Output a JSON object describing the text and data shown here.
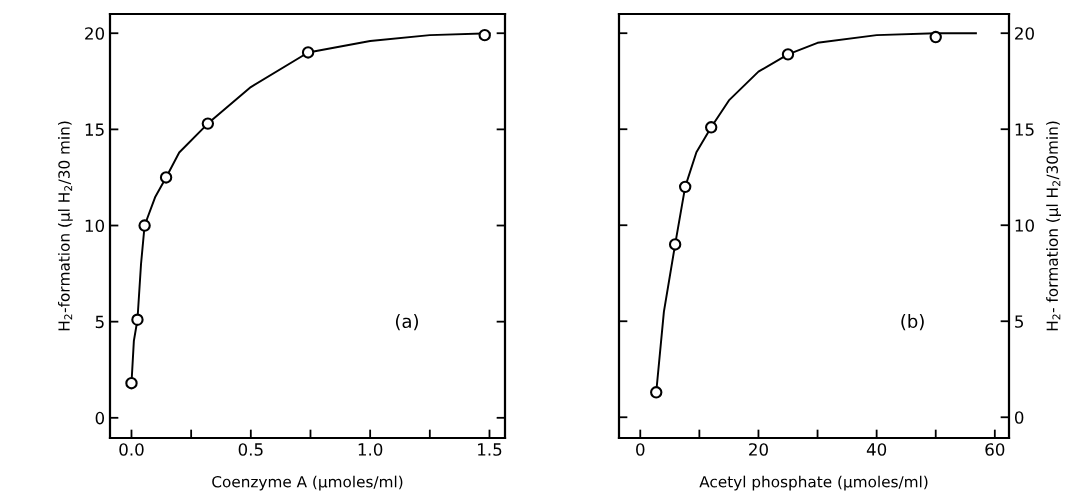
{
  "chart_data": [
    {
      "type": "scatter",
      "xlabel": "Coenzyme A (μmoles/ml)",
      "ylabel": "H$_{2}$-formation (μl H$_{2}$/30 min)",
      "annotations": [
        "(a)"
      ],
      "xlim": [
        -0.09,
        1.565
      ],
      "xticks": [
        {
          "value": 0.0,
          "label": "0.0"
        },
        {
          "value": 0.25,
          "label": null
        },
        {
          "value": 0.5,
          "label": "0.5"
        },
        {
          "value": 0.75,
          "label": null
        },
        {
          "value": 1.0,
          "label": "1.0"
        },
        {
          "value": 1.25,
          "label": null
        },
        {
          "value": 1.5,
          "label": "1.5"
        }
      ],
      "ylim": [
        -1.05,
        21
      ],
      "yticks": [
        0,
        5,
        10,
        15,
        20
      ],
      "grid": false,
      "marker": "circle",
      "series": [
        {
          "type": "line",
          "color": "#000000",
          "marker": "none",
          "x": [
            0,
            0.01,
            0.025,
            0.04,
            0.055,
            0.1,
            0.145,
            0.2,
            0.32,
            0.5,
            0.74,
            1.0,
            1.25,
            1.5
          ],
          "values": [
            1.8,
            4,
            5.1,
            8,
            10,
            11.5,
            12.5,
            13.8,
            15.3,
            17.2,
            19,
            19.6,
            19.9,
            20
          ]
        },
        {
          "color": "#000000",
          "x": [
            0,
            0.025,
            0.055,
            0.145,
            0.32,
            0.74,
            1.48
          ],
          "values": [
            1.8,
            5.1,
            10,
            12.5,
            15.3,
            19,
            19.9
          ]
        }
      ]
    },
    {
      "type": "scatter",
      "xlabel": "Acetyl phosphate (μmoles/ml)",
      "y2label": "H$_{2}$- formation (μl H$_{2}$/30min)",
      "annotations": [
        "(b)"
      ],
      "xlim": [
        -3.6,
        62.4
      ],
      "xticks": [
        0,
        {
          "value": 10,
          "label": null
        },
        20,
        {
          "value": 30,
          "label": null
        },
        40,
        {
          "value": 50,
          "label": null
        },
        60
      ],
      "y2lim": [
        -1.08,
        21
      ],
      "y2ticks": [
        0,
        5,
        10,
        15,
        20
      ],
      "grid": false,
      "marker": "circle",
      "series": [
        {
          "type": "line",
          "axis": "y2",
          "color": "#000000",
          "marker": "none",
          "x": [
            2.7,
            4,
            5.9,
            7.6,
            9.5,
            12,
            15,
            20,
            25,
            30,
            40,
            50,
            56.8
          ],
          "values": [
            1.3,
            5.5,
            9,
            12,
            13.8,
            15.1,
            16.5,
            18,
            18.9,
            19.5,
            19.9,
            20,
            20
          ]
        },
        {
          "axis": "y2",
          "color": "#000000",
          "x": [
            2.7,
            5.9,
            7.6,
            12,
            25,
            50
          ],
          "values": [
            1.3,
            9,
            12,
            15.1,
            18.9,
            19.8
          ]
        }
      ]
    }
  ]
}
